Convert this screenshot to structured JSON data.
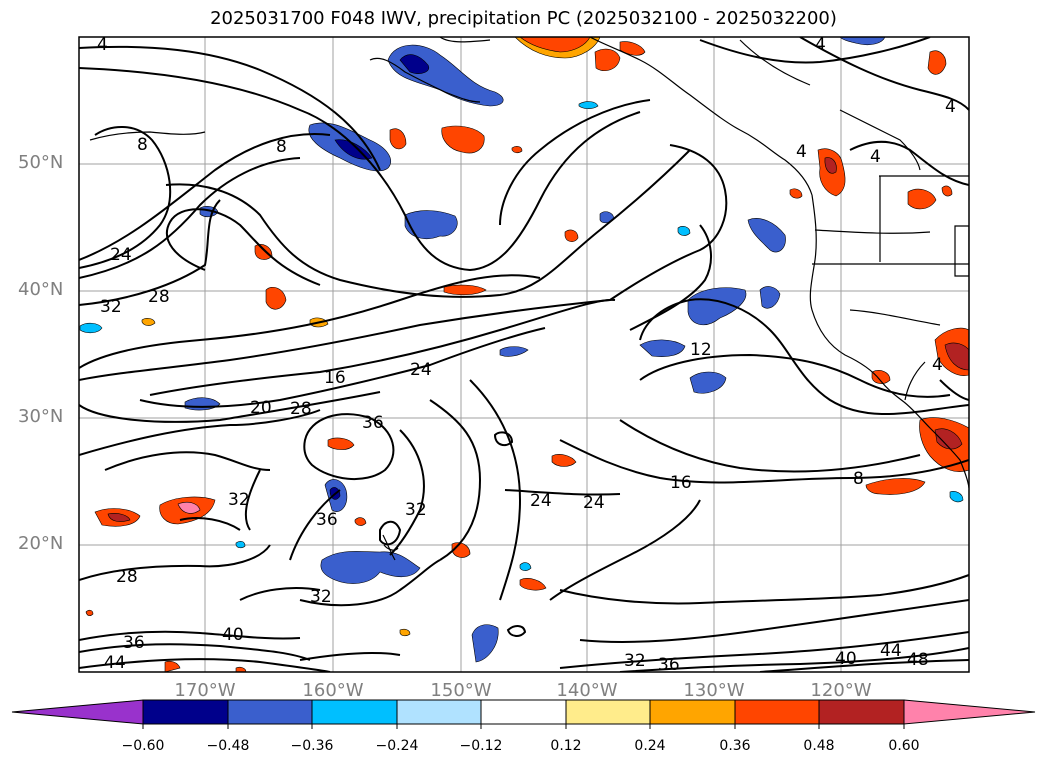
{
  "title": "2025031700 F048 IWV, precipitation PC (2025032100 - 2025032200)",
  "lat_labels": [
    "50°N",
    "40°N",
    "30°N",
    "20°N"
  ],
  "lon_labels": [
    "170°W",
    "160°W",
    "150°W",
    "140°W",
    "130°W",
    "120°W"
  ],
  "colorbar": {
    "tick_labels": [
      "−0.60",
      "−0.48",
      "−0.36",
      "−0.24",
      "−0.12",
      "0.12",
      "0.24",
      "0.36",
      "0.48",
      "0.60"
    ],
    "colors": [
      "#9932cc",
      "#00008b",
      "#3a5fcd",
      "#00bfff",
      "#b0e2ff",
      "#ffffff",
      "#ffec8b",
      "#ffa500",
      "#ff4500",
      "#b22222",
      "#ff82ab"
    ]
  },
  "contour_labels": [
    "4",
    "8",
    "24",
    "32",
    "28",
    "8",
    "16",
    "24",
    "20",
    "28",
    "36",
    "12",
    "4",
    "4",
    "4",
    "4",
    "4",
    "16",
    "8",
    "24",
    "24",
    "32",
    "36",
    "32",
    "28",
    "32",
    "36",
    "40",
    "44",
    "32",
    "36",
    "40",
    "44",
    "48"
  ]
}
